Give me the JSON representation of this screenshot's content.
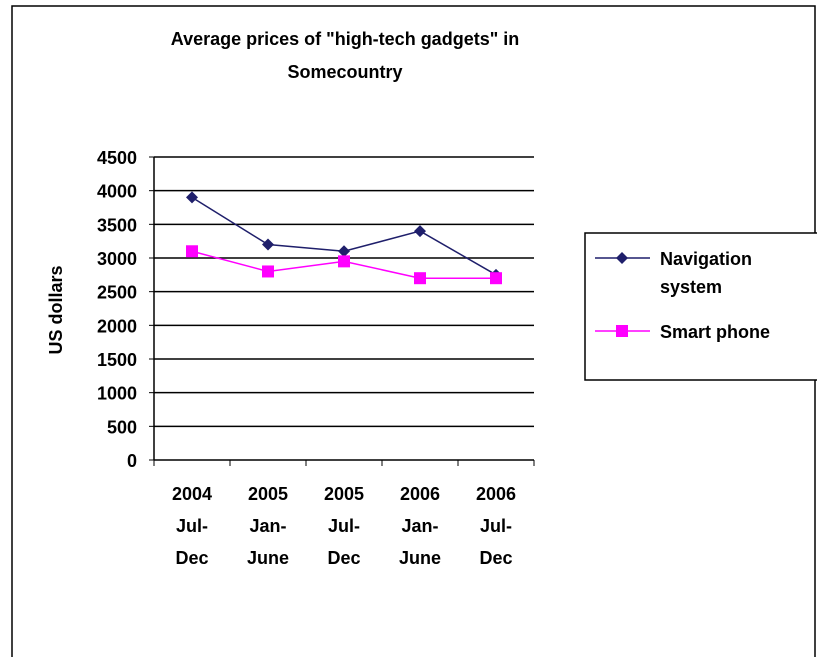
{
  "chart_data": {
    "type": "line",
    "title": "Average prices of \"high-tech gadgets\" in Somecountry",
    "y_label": "US dollars",
    "categories": [
      "2004 Jul-Dec",
      "2005 Jan-June",
      "2005 Jul-Dec",
      "2006 Jan-June",
      "2006 Jul-Dec"
    ],
    "series": [
      {
        "name": "Navigation system",
        "color": "#1f1f6b",
        "marker": "diamond",
        "values": [
          3900,
          3200,
          3100,
          3400,
          2750
        ]
      },
      {
        "name": "Smart phone",
        "color": "#ff00ff",
        "marker": "square",
        "values": [
          3100,
          2800,
          2950,
          2700,
          2700
        ]
      }
    ],
    "ylim": [
      0,
      4500
    ],
    "yticks": [
      0,
      500,
      1000,
      1500,
      2000,
      2500,
      3000,
      3500,
      4000,
      4500
    ],
    "grid": true,
    "legend": "right"
  }
}
